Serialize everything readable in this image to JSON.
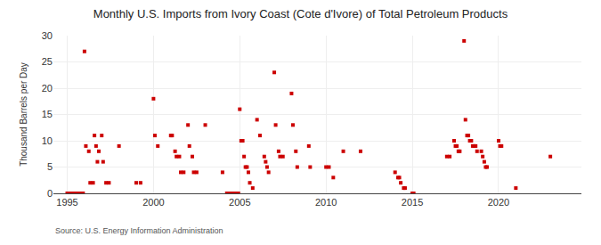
{
  "chart_data": {
    "type": "scatter",
    "title": "Monthly U.S. Imports from Ivory Coast (Cote d'Ivore) of Total Petroleum Products",
    "ylabel": "Thousand Barrels per Day",
    "annotations": [
      "Source: U.S. Energy Information Administration"
    ],
    "color": "#cc0000",
    "marker": "square",
    "grid": true,
    "xlim": [
      1994.2,
      2024.8
    ],
    "xticks": [
      1995,
      2000,
      2005,
      2010,
      2015,
      2020
    ],
    "ylim": [
      0,
      30
    ],
    "yticks": [
      0,
      5,
      10,
      15,
      20,
      25,
      30
    ],
    "x": [
      1995.0,
      1995.08,
      1995.17,
      1995.25,
      1995.33,
      1995.42,
      1995.5,
      1995.58,
      1995.67,
      1995.75,
      1995.83,
      1995.92,
      1996.0,
      1996.08,
      1996.25,
      1996.33,
      1996.5,
      1996.58,
      1996.67,
      1996.75,
      1996.83,
      1997.0,
      1997.08,
      1997.25,
      1997.42,
      1998.0,
      1999.0,
      1999.25,
      2000.0,
      2000.08,
      2000.25,
      2001.0,
      2001.08,
      2001.25,
      2001.33,
      2001.5,
      2001.58,
      2001.75,
      2002.0,
      2002.08,
      2002.25,
      2002.33,
      2002.5,
      2003.0,
      2004.0,
      2004.25,
      2004.42,
      2004.58,
      2004.75,
      2004.92,
      2005.0,
      2005.08,
      2005.17,
      2005.25,
      2005.33,
      2005.42,
      2005.5,
      2005.58,
      2005.75,
      2006.0,
      2006.17,
      2006.42,
      2006.5,
      2006.58,
      2006.67,
      2007.0,
      2007.08,
      2007.25,
      2007.33,
      2007.5,
      2008.0,
      2008.08,
      2008.25,
      2008.33,
      2009.0,
      2009.08,
      2010.0,
      2010.17,
      2010.42,
      2011.0,
      2012.0,
      2014.0,
      2014.17,
      2014.25,
      2014.33,
      2014.5,
      2014.58,
      2015.0,
      2015.08,
      2017.0,
      2017.17,
      2017.42,
      2017.5,
      2017.58,
      2017.67,
      2017.75,
      2018.0,
      2018.08,
      2018.17,
      2018.25,
      2018.33,
      2018.42,
      2018.5,
      2018.58,
      2018.67,
      2018.75,
      2019.0,
      2019.08,
      2019.17,
      2019.25,
      2019.33,
      2020.0,
      2020.08,
      2020.17,
      2021.0,
      2023.0
    ],
    "values": [
      0,
      0,
      0,
      0,
      0,
      0,
      0,
      0,
      0,
      0,
      0,
      0,
      27,
      9,
      8,
      2,
      2,
      11,
      9,
      6,
      8,
      11,
      6,
      2,
      2,
      9,
      2,
      2,
      18,
      11,
      9,
      11,
      11,
      8,
      7,
      7,
      4,
      4,
      13,
      9,
      7,
      4,
      4,
      13,
      4,
      0,
      0,
      0,
      0,
      0,
      16,
      10,
      10,
      7,
      5,
      5,
      4,
      2,
      1,
      14,
      11,
      7,
      6,
      5,
      4,
      23,
      13,
      8,
      7,
      7,
      19,
      13,
      8,
      5,
      9,
      5,
      5,
      5,
      3,
      8,
      8,
      4,
      3,
      3,
      2,
      1,
      1,
      0,
      0,
      7,
      7,
      10,
      9,
      9,
      8,
      8,
      29,
      14,
      11,
      11,
      10,
      10,
      9,
      9,
      9,
      8,
      8,
      7,
      6,
      5,
      5,
      10,
      9,
      9,
      1,
      7
    ]
  }
}
